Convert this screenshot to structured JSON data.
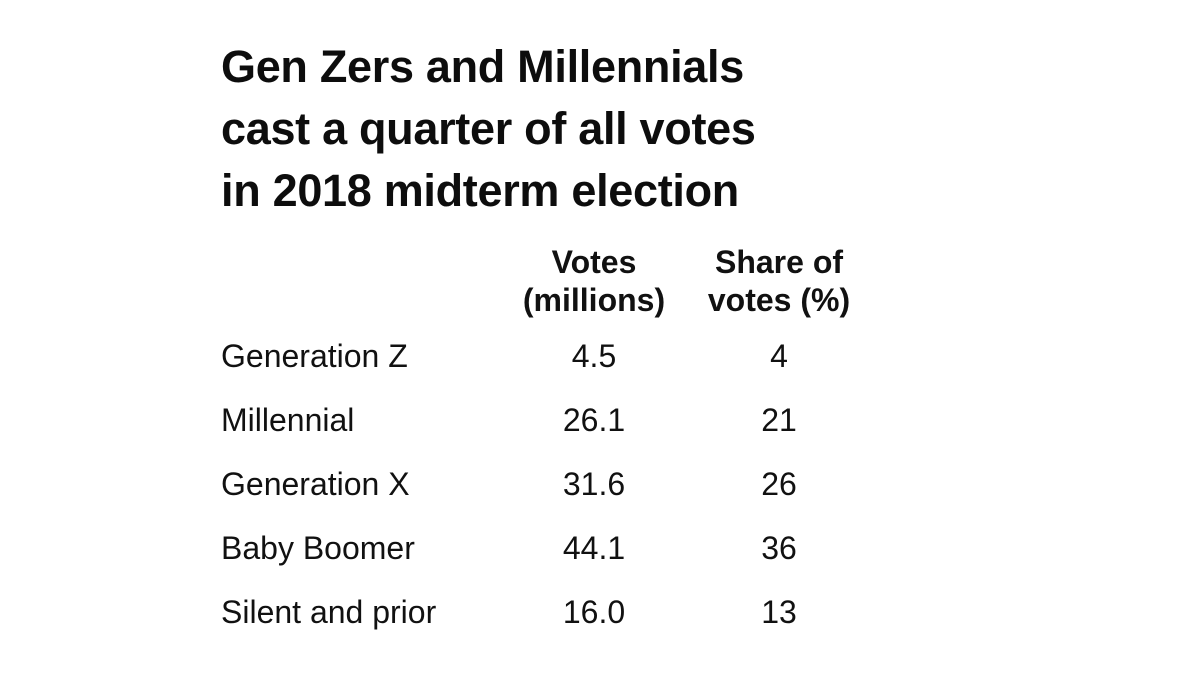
{
  "chart_data": {
    "type": "table",
    "title_lines": [
      "Gen Zers and Millennials",
      "cast a quarter of all votes",
      "in 2018 midterm election"
    ],
    "columns": [
      {
        "lines": [
          "Votes",
          "(millions)"
        ]
      },
      {
        "lines": [
          "Share of",
          "votes (%)"
        ]
      }
    ],
    "rows": [
      {
        "label": "Generation Z",
        "votes": "4.5",
        "share": "4"
      },
      {
        "label": "Millennial",
        "votes": "26.1",
        "share": "21"
      },
      {
        "label": "Generation X",
        "votes": "31.6",
        "share": "26"
      },
      {
        "label": "Baby Boomer",
        "votes": "44.1",
        "share": "36"
      },
      {
        "label": "Silent and prior",
        "votes": "16.0",
        "share": "13"
      }
    ]
  }
}
